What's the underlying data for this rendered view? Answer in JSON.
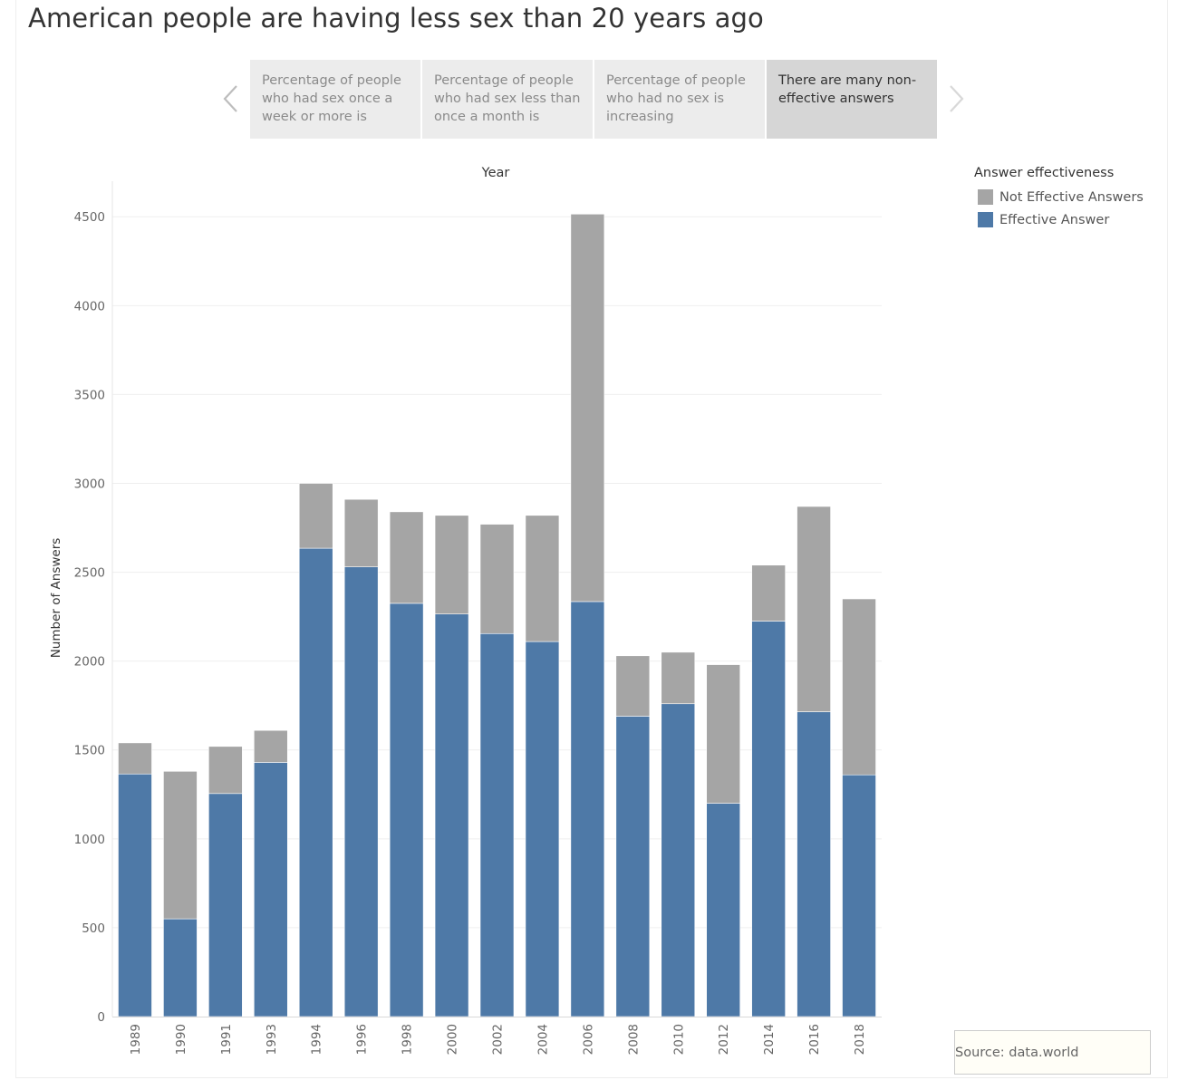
{
  "page": {
    "title": "American people are having less sex than 20 years ago",
    "source": "Source: data.world"
  },
  "story": {
    "points": [
      {
        "label": "Percentage of people who had sex once a week or more is",
        "active": false
      },
      {
        "label": "Percentage of people who had sex less than once a month is",
        "active": false
      },
      {
        "label": "Percentage of people who had no sex is increasing",
        "active": false
      },
      {
        "label": "There are many non-effective answers",
        "active": true
      }
    ],
    "prev_icon": "chevron-left-icon",
    "next_icon": "chevron-right-icon"
  },
  "legend": {
    "title": "Answer effectiveness",
    "items": [
      {
        "label": "Not Effective Answers",
        "color": "#a5a5a5"
      },
      {
        "label": "Effective Answer",
        "color": "#4e79a7"
      }
    ]
  },
  "chart_data": {
    "type": "bar",
    "stacked": true,
    "title": "Year",
    "xlabel": "",
    "ylabel": "Number of Answers",
    "categories": [
      "1989",
      "1990",
      "1991",
      "1993",
      "1994",
      "1996",
      "1998",
      "2000",
      "2002",
      "2004",
      "2006",
      "2008",
      "2010",
      "2012",
      "2014",
      "2016",
      "2018"
    ],
    "series": [
      {
        "name": "Effective Answer",
        "color": "#4e79a7",
        "values": [
          1365,
          550,
          1255,
          1430,
          2635,
          2530,
          2325,
          2265,
          2155,
          2110,
          2335,
          1690,
          1760,
          1200,
          2225,
          1715,
          1360
        ]
      },
      {
        "name": "Not Effective Answers",
        "color": "#a5a5a5",
        "values": [
          175,
          830,
          265,
          180,
          365,
          380,
          515,
          555,
          615,
          710,
          2180,
          340,
          290,
          780,
          315,
          1155,
          990
        ]
      }
    ],
    "ylim": [
      0,
      4700
    ],
    "yticks": [
      0,
      500,
      1000,
      1500,
      2000,
      2500,
      3000,
      3500,
      4000,
      4500
    ],
    "grid": true,
    "legend_position": "right"
  }
}
